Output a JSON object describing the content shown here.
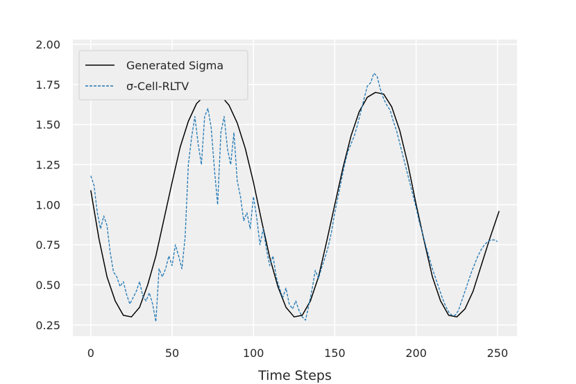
{
  "chart_data": {
    "type": "line",
    "title": "",
    "xlabel": "Time Steps",
    "ylabel": "",
    "xlim": [
      -11,
      262
    ],
    "ylim": [
      0.18,
      2.03
    ],
    "x_ticks": [
      0,
      50,
      100,
      150,
      200,
      250
    ],
    "y_ticks": [
      0.25,
      0.5,
      0.75,
      1.0,
      1.25,
      1.5,
      1.75,
      2.0
    ],
    "x_tick_labels": [
      "0",
      "50",
      "100",
      "150",
      "200",
      "250"
    ],
    "y_tick_labels": [
      "0.25",
      "0.50",
      "0.75",
      "1.00",
      "1.25",
      "1.50",
      "1.75",
      "2.00"
    ],
    "grid": true,
    "legend": "top-left",
    "background": "#efefef",
    "series": [
      {
        "name": "Generated Sigma",
        "color": "#000000",
        "style": "solid",
        "x": [
          0,
          5,
          10,
          15,
          20,
          25,
          30,
          35,
          40,
          45,
          50,
          55,
          60,
          65,
          70,
          75,
          80,
          85,
          90,
          95,
          100,
          105,
          110,
          115,
          120,
          125,
          130,
          135,
          140,
          145,
          150,
          155,
          160,
          165,
          170,
          175,
          180,
          185,
          190,
          195,
          200,
          205,
          210,
          215,
          220,
          225,
          230,
          235,
          240,
          245,
          251
        ],
        "y": [
          1.09,
          0.79,
          0.55,
          0.4,
          0.31,
          0.3,
          0.36,
          0.5,
          0.68,
          0.91,
          1.14,
          1.36,
          1.52,
          1.63,
          1.68,
          1.7,
          1.68,
          1.62,
          1.51,
          1.35,
          1.14,
          0.9,
          0.67,
          0.49,
          0.36,
          0.3,
          0.31,
          0.4,
          0.55,
          0.77,
          1.0,
          1.23,
          1.43,
          1.58,
          1.67,
          1.7,
          1.69,
          1.61,
          1.46,
          1.25,
          1.0,
          0.77,
          0.55,
          0.4,
          0.31,
          0.3,
          0.35,
          0.46,
          0.62,
          0.78,
          0.96
        ]
      },
      {
        "name": "σ-Cell-RLTV",
        "color": "#1f77b4",
        "style": "dashed",
        "x": [
          0,
          2,
          4,
          6,
          8,
          10,
          12,
          14,
          16,
          18,
          20,
          22,
          24,
          26,
          28,
          30,
          32,
          34,
          36,
          38,
          40,
          42,
          44,
          46,
          48,
          50,
          52,
          54,
          56,
          58,
          60,
          62,
          64,
          66,
          68,
          70,
          72,
          74,
          76,
          78,
          80,
          82,
          84,
          86,
          88,
          90,
          92,
          94,
          96,
          98,
          100,
          102,
          104,
          106,
          108,
          110,
          112,
          114,
          116,
          118,
          120,
          122,
          124,
          126,
          128,
          130,
          132,
          134,
          136,
          138,
          140,
          142,
          144,
          146,
          148,
          150,
          152,
          154,
          156,
          158,
          160,
          162,
          164,
          166,
          168,
          170,
          172,
          174,
          176,
          178,
          180,
          182,
          184,
          186,
          188,
          190,
          192,
          194,
          196,
          198,
          200,
          202,
          204,
          206,
          208,
          210,
          212,
          214,
          216,
          218,
          220,
          222,
          224,
          226,
          228,
          230,
          232,
          234,
          236,
          238,
          240,
          242,
          244,
          246,
          248,
          250
        ],
        "y": [
          1.18,
          1.12,
          0.95,
          0.85,
          0.93,
          0.87,
          0.7,
          0.58,
          0.55,
          0.49,
          0.52,
          0.44,
          0.38,
          0.42,
          0.46,
          0.52,
          0.43,
          0.4,
          0.45,
          0.38,
          0.27,
          0.6,
          0.55,
          0.6,
          0.68,
          0.62,
          0.75,
          0.68,
          0.6,
          0.8,
          1.25,
          1.42,
          1.55,
          1.38,
          1.25,
          1.55,
          1.6,
          1.48,
          1.22,
          1.0,
          1.45,
          1.55,
          1.35,
          1.25,
          1.45,
          1.15,
          1.05,
          0.9,
          0.95,
          0.85,
          1.05,
          0.92,
          0.75,
          0.85,
          0.72,
          0.62,
          0.68,
          0.55,
          0.48,
          0.42,
          0.48,
          0.38,
          0.35,
          0.4,
          0.34,
          0.3,
          0.28,
          0.37,
          0.47,
          0.59,
          0.54,
          0.61,
          0.67,
          0.74,
          0.83,
          0.95,
          1.05,
          1.15,
          1.25,
          1.33,
          1.38,
          1.43,
          1.5,
          1.58,
          1.66,
          1.74,
          1.76,
          1.82,
          1.8,
          1.72,
          1.66,
          1.62,
          1.59,
          1.52,
          1.46,
          1.38,
          1.3,
          1.22,
          1.14,
          1.06,
          0.98,
          0.89,
          0.82,
          0.74,
          0.67,
          0.6,
          0.54,
          0.48,
          0.42,
          0.37,
          0.33,
          0.31,
          0.31,
          0.34,
          0.4,
          0.46,
          0.52,
          0.58,
          0.63,
          0.68,
          0.72,
          0.75,
          0.77,
          0.78,
          0.78,
          0.77
        ]
      }
    ]
  }
}
